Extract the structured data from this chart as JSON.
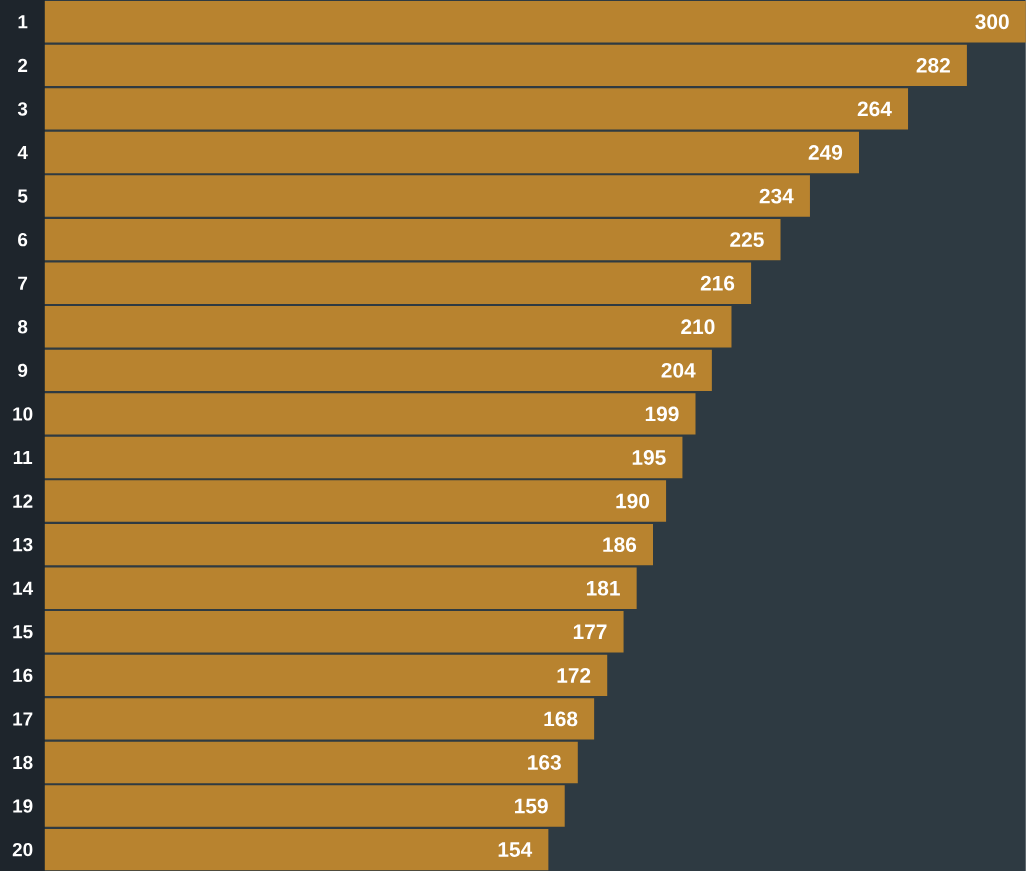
{
  "chart_data": {
    "type": "bar",
    "orientation": "horizontal",
    "categories": [
      "1",
      "2",
      "3",
      "4",
      "5",
      "6",
      "7",
      "8",
      "9",
      "10",
      "11",
      "12",
      "13",
      "14",
      "15",
      "16",
      "17",
      "18",
      "19",
      "20"
    ],
    "values": [
      300,
      282,
      264,
      249,
      234,
      225,
      216,
      210,
      204,
      199,
      195,
      190,
      186,
      181,
      177,
      172,
      168,
      163,
      159,
      154
    ],
    "color": "#b8832f",
    "xlim": [
      0,
      300
    ],
    "data_labels": true,
    "tick_labels": "y",
    "grid": false
  }
}
